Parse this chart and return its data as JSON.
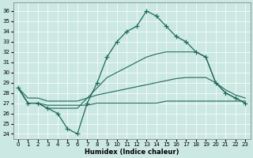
{
  "xlabel": "Humidex (Indice chaleur)",
  "bg_color": "#cce8e2",
  "line_color": "#1a6b5a",
  "ylim": [
    23.5,
    36.8
  ],
  "xlim": [
    -0.5,
    23.5
  ],
  "yticks": [
    24,
    25,
    26,
    27,
    28,
    29,
    30,
    31,
    32,
    33,
    34,
    35,
    36
  ],
  "xticks": [
    0,
    1,
    2,
    3,
    4,
    5,
    6,
    7,
    8,
    9,
    10,
    11,
    12,
    13,
    14,
    15,
    16,
    17,
    18,
    19,
    20,
    21,
    22,
    23
  ],
  "line1_x": [
    0,
    1,
    2,
    3,
    4,
    5,
    6,
    7,
    8,
    9,
    10,
    11,
    12,
    13,
    14,
    15,
    16,
    17,
    18,
    19,
    20,
    21,
    22,
    23
  ],
  "line1_y": [
    28.5,
    27.0,
    27.0,
    26.5,
    26.0,
    24.5,
    24.0,
    27.0,
    29.0,
    31.5,
    33.0,
    34.0,
    34.5,
    36.0,
    35.5,
    34.5,
    33.5,
    33.0,
    32.0,
    31.5,
    29.0,
    28.0,
    27.5,
    27.0
  ],
  "line2_y": [
    28.5,
    27.0,
    27.0,
    26.5,
    26.5,
    26.5,
    26.5,
    27.5,
    28.5,
    29.5,
    30.0,
    30.5,
    31.0,
    31.5,
    31.8,
    32.0,
    32.0,
    32.0,
    32.0,
    31.5,
    29.0,
    28.0,
    27.5,
    27.0
  ],
  "line3_y": [
    28.5,
    27.0,
    27.0,
    26.8,
    26.8,
    26.8,
    26.8,
    26.8,
    27.0,
    27.0,
    27.0,
    27.0,
    27.0,
    27.0,
    27.0,
    27.2,
    27.2,
    27.2,
    27.2,
    27.2,
    27.2,
    27.2,
    27.2,
    27.2
  ],
  "line4_y": [
    28.5,
    27.5,
    27.5,
    27.2,
    27.2,
    27.2,
    27.2,
    27.5,
    27.8,
    28.0,
    28.2,
    28.4,
    28.6,
    28.8,
    29.0,
    29.2,
    29.4,
    29.5,
    29.5,
    29.5,
    29.0,
    28.3,
    27.8,
    27.5
  ]
}
